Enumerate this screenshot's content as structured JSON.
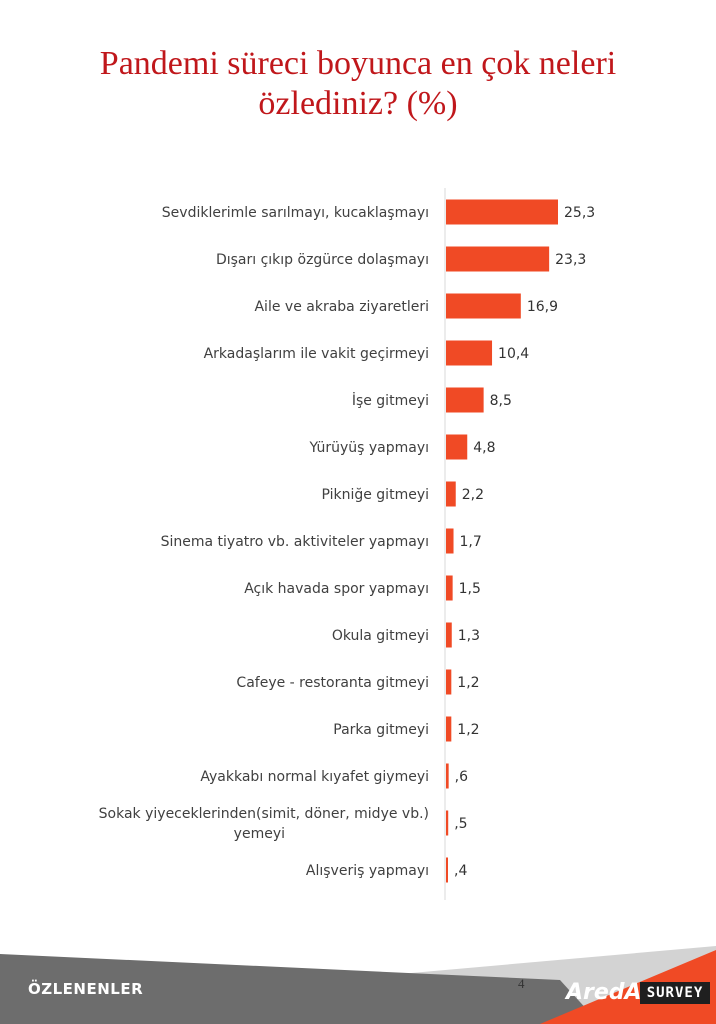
{
  "title_line1": "Pandemi süreci boyunca en çok neleri",
  "title_line2": "özlediniz? (%)",
  "chart_data": {
    "type": "bar",
    "orientation": "horizontal",
    "categories": [
      "Sevdiklerimle sarılmayı, kucaklaşmayı",
      "Dışarı çıkıp özgürce dolaşmayı",
      "Aile ve akraba ziyaretleri",
      "Arkadaşlarım ile vakit geçirmeyi",
      "İşe gitmeyi",
      "Yürüyüş yapmayı",
      "Pikniğe gitmeyi",
      "Sinema tiyatro vb. aktiviteler yapmayı",
      "Açık havada spor yapmayı",
      "Okula gitmeyi",
      "Cafeye - restoranta gitmeyi",
      "Parka gitmeyi",
      "Ayakkabı normal kıyafet giymeyi",
      "Sokak yiyeceklerinden(simit, döner, midye vb.) yemeyi",
      "Alışveriş yapmayı"
    ],
    "values": [
      25.3,
      23.3,
      16.9,
      10.4,
      8.5,
      4.8,
      2.2,
      1.7,
      1.5,
      1.3,
      1.2,
      1.2,
      0.6,
      0.5,
      0.4
    ],
    "value_labels": [
      "25,3",
      "23,3",
      "16,9",
      "10,4",
      "8,5",
      "4,8",
      "2,2",
      "1,7",
      "1,5",
      "1,3",
      "1,2",
      "1,2",
      ",6",
      ",5",
      ",4"
    ],
    "bar_color": "#f04a25",
    "grid": false,
    "legend": false
  },
  "footer": {
    "label": "ÖZLENENLER",
    "page_number": "4",
    "brand_name": "ArеdA",
    "brand_survey": "SURVEY"
  },
  "colors": {
    "title": "#c0171b",
    "footer_dark": "#6b6b6b",
    "footer_light": "#c9c9c9",
    "accent": "#f04a25"
  }
}
